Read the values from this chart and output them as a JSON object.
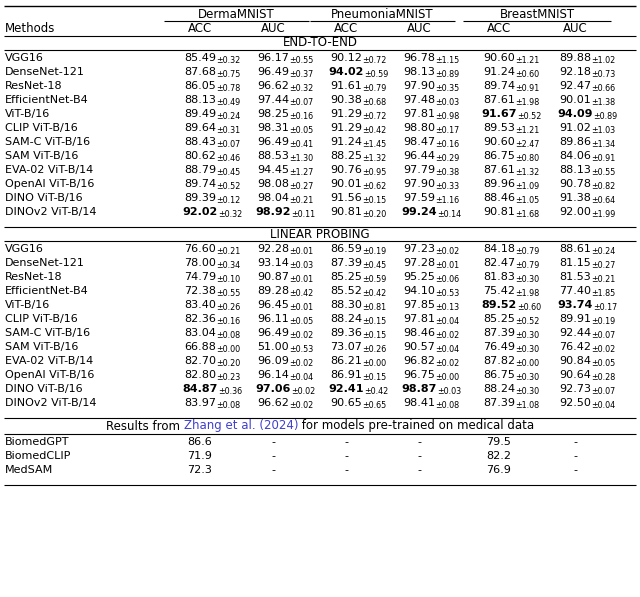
{
  "col_group_labels": [
    "DermaMNIST",
    "PneumoniaMNIST",
    "BreastMNIST"
  ],
  "col_headers": [
    "Methods",
    "ACC",
    "AUC",
    "ACC",
    "AUC",
    "ACC",
    "AUC"
  ],
  "section1_label": "END-TO-END",
  "section2_label": "LINEAR PROBING",
  "section3_prefix": "Results from ",
  "section3_link": "Zhang et al. (2024)",
  "section3_suffix": " for models pre-trained on medical data",
  "link_color": "#4040cc",
  "rows_e2e": [
    {
      "method": "VGG16",
      "vals": [
        "85.49",
        "96.17",
        "90.12",
        "96.78",
        "90.60",
        "89.88"
      ],
      "pms": [
        "0.32",
        "0.55",
        "0.72",
        "1.15",
        "1.21",
        "1.02"
      ],
      "bold": [
        false,
        false,
        false,
        false,
        false,
        false
      ]
    },
    {
      "method": "DenseNet-121",
      "vals": [
        "87.68",
        "96.49",
        "94.02",
        "98.13",
        "91.24",
        "92.18"
      ],
      "pms": [
        "0.75",
        "0.37",
        "0.59",
        "0.89",
        "0.60",
        "0.73"
      ],
      "bold": [
        false,
        false,
        true,
        false,
        false,
        false
      ]
    },
    {
      "method": "ResNet-18",
      "vals": [
        "86.05",
        "96.62",
        "91.61",
        "97.90",
        "89.74",
        "92.47"
      ],
      "pms": [
        "0.78",
        "0.32",
        "0.79",
        "0.35",
        "0.91",
        "0.66"
      ],
      "bold": [
        false,
        false,
        false,
        false,
        false,
        false
      ]
    },
    {
      "method": "EfficientNet-B4",
      "vals": [
        "88.13",
        "97.44",
        "90.38",
        "97.48",
        "87.61",
        "90.01"
      ],
      "pms": [
        "0.49",
        "0.07",
        "0.68",
        "0.03",
        "1.98",
        "1.38"
      ],
      "bold": [
        false,
        false,
        false,
        false,
        false,
        false
      ]
    },
    {
      "method": "ViT-B/16",
      "vals": [
        "89.49",
        "98.25",
        "91.29",
        "97.81",
        "91.67",
        "94.09"
      ],
      "pms": [
        "0.24",
        "0.16",
        "0.72",
        "0.98",
        "0.52",
        "0.89"
      ],
      "bold": [
        false,
        false,
        false,
        false,
        true,
        true
      ]
    },
    {
      "method": "CLIP ViT-B/16",
      "vals": [
        "89.64",
        "98.31",
        "91.29",
        "98.80",
        "89.53",
        "91.02"
      ],
      "pms": [
        "0.31",
        "0.05",
        "0.42",
        "0.17",
        "1.21",
        "1.03"
      ],
      "bold": [
        false,
        false,
        false,
        false,
        false,
        false
      ]
    },
    {
      "method": "SAM-C ViT-B/16",
      "vals": [
        "88.43",
        "96.49",
        "91.24",
        "98.47",
        "90.60",
        "89.86"
      ],
      "pms": [
        "0.07",
        "0.41",
        "1.45",
        "0.16",
        "2.47",
        "1.34"
      ],
      "bold": [
        false,
        false,
        false,
        false,
        false,
        false
      ]
    },
    {
      "method": "SAM ViT-B/16",
      "vals": [
        "80.62",
        "88.53",
        "88.25",
        "96.44",
        "86.75",
        "84.06"
      ],
      "pms": [
        "0.46",
        "1.30",
        "1.32",
        "0.29",
        "0.80",
        "0.91"
      ],
      "bold": [
        false,
        false,
        false,
        false,
        false,
        false
      ]
    },
    {
      "method": "EVA-02 ViT-B/14",
      "vals": [
        "88.79",
        "94.45",
        "90.76",
        "97.79",
        "87.61",
        "88.13"
      ],
      "pms": [
        "0.45",
        "1.27",
        "0.95",
        "0.38",
        "1.32",
        "0.55"
      ],
      "bold": [
        false,
        false,
        false,
        false,
        false,
        false
      ]
    },
    {
      "method": "OpenAI ViT-B/16",
      "vals": [
        "89.74",
        "98.08",
        "90.01",
        "97.90",
        "89.96",
        "90.78"
      ],
      "pms": [
        "0.52",
        "0.27",
        "0.62",
        "0.33",
        "1.09",
        "0.82"
      ],
      "bold": [
        false,
        false,
        false,
        false,
        false,
        false
      ]
    },
    {
      "method": "DINO ViT-B/16",
      "vals": [
        "89.39",
        "98.04",
        "91.56",
        "97.59",
        "88.46",
        "91.38"
      ],
      "pms": [
        "0.12",
        "0.21",
        "0.15",
        "1.16",
        "1.05",
        "0.64"
      ],
      "bold": [
        false,
        false,
        false,
        false,
        false,
        false
      ]
    },
    {
      "method": "DINOv2 ViT-B/14",
      "vals": [
        "92.02",
        "98.92",
        "90.81",
        "99.24",
        "90.81",
        "92.00"
      ],
      "pms": [
        "0.32",
        "0.11",
        "0.20",
        "0.14",
        "1.68",
        "1.99"
      ],
      "bold": [
        true,
        true,
        false,
        true,
        false,
        false
      ]
    }
  ],
  "rows_lp": [
    {
      "method": "VGG16",
      "vals": [
        "76.60",
        "92.28",
        "86.59",
        "97.23",
        "84.18",
        "88.61"
      ],
      "pms": [
        "0.21",
        "0.01",
        "0.19",
        "0.02",
        "0.79",
        "0.24"
      ],
      "bold": [
        false,
        false,
        false,
        false,
        false,
        false
      ]
    },
    {
      "method": "DenseNet-121",
      "vals": [
        "78.00",
        "93.14",
        "87.39",
        "97.28",
        "82.47",
        "81.15"
      ],
      "pms": [
        "0.34",
        "0.03",
        "0.45",
        "0.01",
        "0.79",
        "0.27"
      ],
      "bold": [
        false,
        false,
        false,
        false,
        false,
        false
      ]
    },
    {
      "method": "ResNet-18",
      "vals": [
        "74.79",
        "90.87",
        "85.25",
        "95.25",
        "81.83",
        "81.53"
      ],
      "pms": [
        "0.10",
        "0.01",
        "0.59",
        "0.06",
        "0.30",
        "0.21"
      ],
      "bold": [
        false,
        false,
        false,
        false,
        false,
        false
      ]
    },
    {
      "method": "EfficientNet-B4",
      "vals": [
        "72.38",
        "89.28",
        "85.52",
        "94.10",
        "75.42",
        "77.40"
      ],
      "pms": [
        "0.55",
        "0.42",
        "0.42",
        "0.53",
        "1.98",
        "1.85"
      ],
      "bold": [
        false,
        false,
        false,
        false,
        false,
        false
      ]
    },
    {
      "method": "ViT-B/16",
      "vals": [
        "83.40",
        "96.45",
        "88.30",
        "97.85",
        "89.52",
        "93.74"
      ],
      "pms": [
        "0.26",
        "0.01",
        "0.81",
        "0.13",
        "0.60",
        "0.17"
      ],
      "bold": [
        false,
        false,
        false,
        false,
        true,
        true
      ]
    },
    {
      "method": "CLIP ViT-B/16",
      "vals": [
        "82.36",
        "96.11",
        "88.24",
        "97.81",
        "85.25",
        "89.91"
      ],
      "pms": [
        "0.16",
        "0.05",
        "0.15",
        "0.04",
        "0.52",
        "0.19"
      ],
      "bold": [
        false,
        false,
        false,
        false,
        false,
        false
      ]
    },
    {
      "method": "SAM-C ViT-B/16",
      "vals": [
        "83.04",
        "96.49",
        "89.36",
        "98.46",
        "87.39",
        "92.44"
      ],
      "pms": [
        "0.08",
        "0.02",
        "0.15",
        "0.02",
        "0.30",
        "0.07"
      ],
      "bold": [
        false,
        false,
        false,
        false,
        false,
        false
      ]
    },
    {
      "method": "SAM ViT-B/16",
      "vals": [
        "66.88",
        "51.00",
        "73.07",
        "90.57",
        "76.49",
        "76.42"
      ],
      "pms": [
        "0.00",
        "0.53",
        "0.26",
        "0.04",
        "0.30",
        "0.02"
      ],
      "bold": [
        false,
        false,
        false,
        false,
        false,
        false
      ]
    },
    {
      "method": "EVA-02 ViT-B/14",
      "vals": [
        "82.70",
        "96.09",
        "86.21",
        "96.82",
        "87.82",
        "90.84"
      ],
      "pms": [
        "0.20",
        "0.02",
        "0.00",
        "0.02",
        "0.00",
        "0.05"
      ],
      "bold": [
        false,
        false,
        false,
        false,
        false,
        false
      ]
    },
    {
      "method": "OpenAI ViT-B/16",
      "vals": [
        "82.80",
        "96.14",
        "86.91",
        "96.75",
        "86.75",
        "90.64"
      ],
      "pms": [
        "0.23",
        "0.04",
        "0.15",
        "0.00",
        "0.30",
        "0.28"
      ],
      "bold": [
        false,
        false,
        false,
        false,
        false,
        false
      ]
    },
    {
      "method": "DINO ViT-B/16",
      "vals": [
        "84.87",
        "97.06",
        "92.41",
        "98.87",
        "88.24",
        "92.73"
      ],
      "pms": [
        "0.36",
        "0.02",
        "0.42",
        "0.03",
        "0.30",
        "0.07"
      ],
      "bold": [
        true,
        true,
        true,
        true,
        false,
        false
      ]
    },
    {
      "method": "DINOv2 ViT-B/14",
      "vals": [
        "83.97",
        "96.62",
        "90.65",
        "98.41",
        "87.39",
        "92.50"
      ],
      "pms": [
        "0.08",
        "0.02",
        "0.65",
        "0.08",
        "1.08",
        "0.04"
      ],
      "bold": [
        false,
        false,
        false,
        false,
        false,
        false
      ]
    }
  ],
  "rows_medical": [
    {
      "method": "BiomedGPT",
      "vals": [
        "86.6",
        "-",
        "-",
        "-",
        "79.5",
        "-"
      ]
    },
    {
      "method": "BiomedCLIP",
      "vals": [
        "71.9",
        "-",
        "-",
        "-",
        "82.2",
        "-"
      ]
    },
    {
      "method": "MedSAM",
      "vals": [
        "72.3",
        "-",
        "-",
        "-",
        "76.9",
        "-"
      ]
    }
  ]
}
